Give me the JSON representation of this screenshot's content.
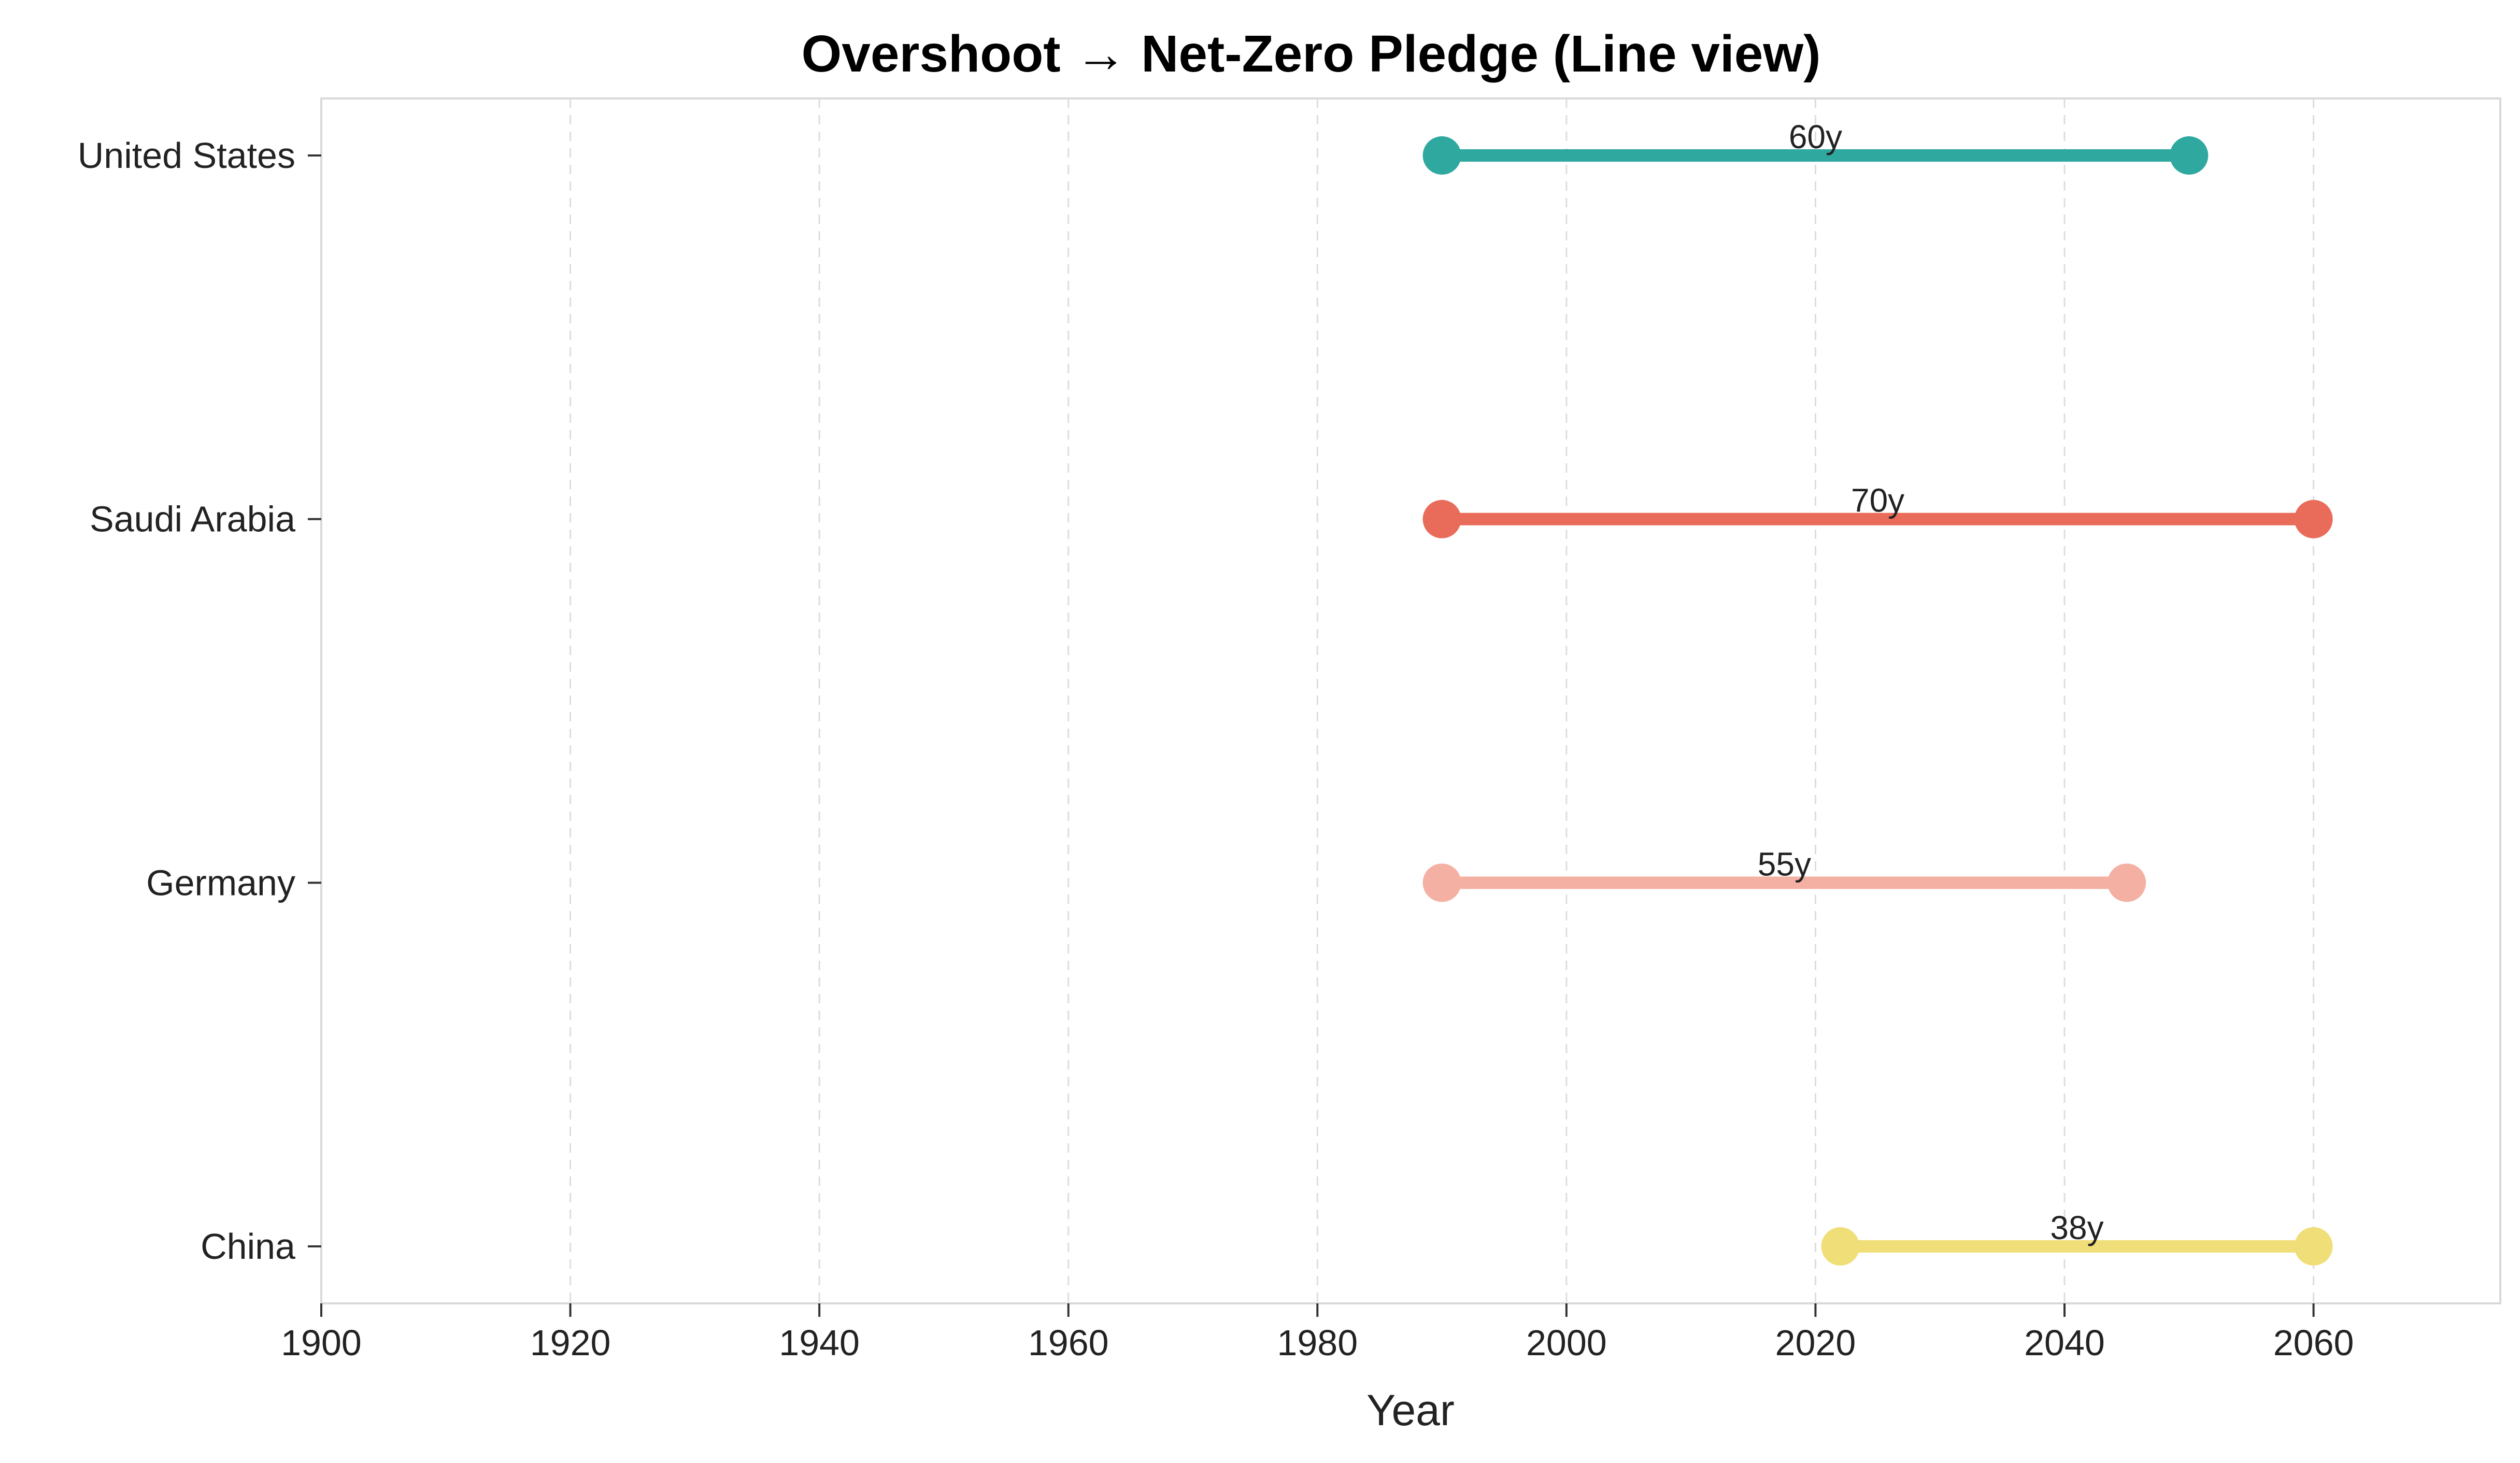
{
  "chart_data": {
    "type": "line",
    "title": "Overshoot → Net-Zero Pledge (Line view)",
    "xlabel": "Year",
    "ylabel": "",
    "xlim": [
      1900,
      2075
    ],
    "xticks": [
      1900,
      1920,
      1940,
      1960,
      1980,
      2000,
      2020,
      2040,
      2060
    ],
    "grid": "x-dashed",
    "series": [
      {
        "name": "United States",
        "start": 1990,
        "end": 2050,
        "label": "60y",
        "color": "#2fa8a0"
      },
      {
        "name": "Saudi Arabia",
        "start": 1990,
        "end": 2060,
        "label": "70y",
        "color": "#e96b59"
      },
      {
        "name": "Germany",
        "start": 1990,
        "end": 2045,
        "label": "55y",
        "color": "#f4b0a2"
      },
      {
        "name": "China",
        "start": 2022,
        "end": 2060,
        "label": "38y",
        "color": "#f0df78"
      }
    ]
  }
}
